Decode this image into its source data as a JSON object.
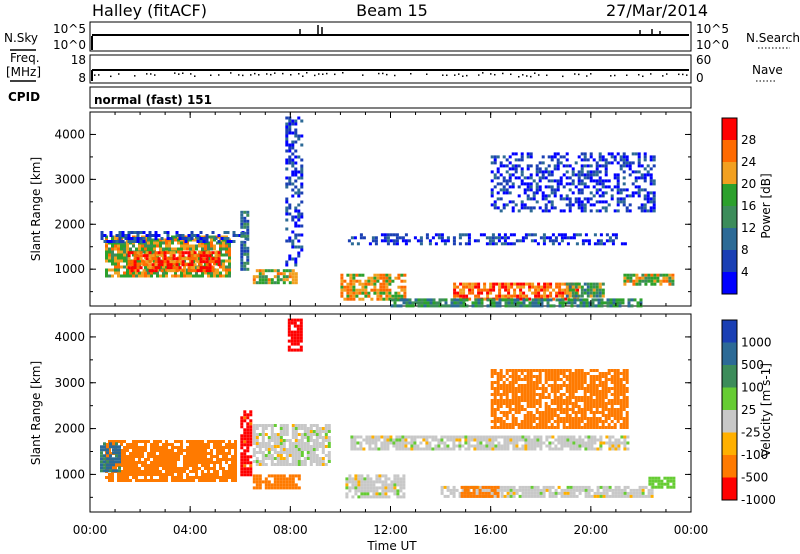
{
  "header": {
    "station": "Halley (fitACF)",
    "beam": "Beam 15",
    "date": "27/Mar/2014"
  },
  "side_labels": {
    "nsky": "N.Sky",
    "nsearch": "N.Search",
    "freq_line1": "Freq.",
    "freq_line2": "[MHz]",
    "nave": "Nave",
    "cpid": "CPID",
    "cpid_value": "normal (fast) 151"
  },
  "strip_ticks": {
    "noise_left": [
      "10^5",
      "10^0"
    ],
    "noise_right": [
      "10^5",
      "10^0"
    ],
    "freq_left": [
      "18",
      "8"
    ],
    "freq_right": [
      "60",
      "0"
    ]
  },
  "colors": {
    "power": [
      "#0000ff",
      "#1a3fb4",
      "#2c6a96",
      "#3c8c5a",
      "#2ca02c",
      "#f2a020",
      "#ff6a00",
      "#ff0000"
    ],
    "velocity": [
      "#1a3fb4",
      "#2c6a96",
      "#3c8c5a",
      "#66cc33",
      "#c8c8c8",
      "#ffb000",
      "#ff7a00",
      "#ff0000"
    ]
  },
  "chart_data": [
    {
      "type": "heatmap",
      "title": "Power",
      "ylabel": "Slant Range [km]",
      "xlabel": "Time UT",
      "x_ticks": [
        "00:00",
        "04:00",
        "08:00",
        "12:00",
        "16:00",
        "20:00",
        "00:00"
      ],
      "y_ticks": [
        "1000",
        "2000",
        "3000",
        "4000"
      ],
      "xlim": [
        0,
        24
      ],
      "ylim": [
        180,
        4500
      ],
      "colorbar": {
        "label": "Power [dB]",
        "ticks": [
          "4",
          "8",
          "12",
          "16",
          "20",
          "24",
          "28"
        ],
        "range": [
          0,
          32
        ]
      },
      "regions": [
        {
          "t0": 0.6,
          "t1": 5.6,
          "r0": 850,
          "r1": 1750,
          "value": 20
        },
        {
          "t0": 1.5,
          "t1": 5.2,
          "r0": 950,
          "r1": 1400,
          "value": 28
        },
        {
          "t0": 0.3,
          "t1": 6.2,
          "r0": 1600,
          "r1": 1850,
          "value": 6
        },
        {
          "t0": 6.0,
          "t1": 6.3,
          "r0": 1000,
          "r1": 2300,
          "value": 10
        },
        {
          "t0": 6.5,
          "t1": 8.2,
          "r0": 700,
          "r1": 1000,
          "value": 20
        },
        {
          "t0": 7.8,
          "t1": 8.5,
          "r0": 1100,
          "r1": 4400,
          "value": 5
        },
        {
          "t0": 10.0,
          "t1": 12.6,
          "r0": 350,
          "r1": 900,
          "value": 22
        },
        {
          "t0": 10.3,
          "t1": 21.5,
          "r0": 1550,
          "r1": 1800,
          "value": 5
        },
        {
          "t0": 14.5,
          "t1": 19.5,
          "r0": 350,
          "r1": 700,
          "value": 26
        },
        {
          "t0": 12.0,
          "t1": 22.0,
          "r0": 180,
          "r1": 350,
          "value": 14
        },
        {
          "t0": 19.0,
          "t1": 20.5,
          "r0": 400,
          "r1": 700,
          "value": 16
        },
        {
          "t0": 21.3,
          "t1": 23.3,
          "r0": 650,
          "r1": 900,
          "value": 20
        },
        {
          "t0": 16.0,
          "t1": 22.5,
          "r0": 2300,
          "r1": 3600,
          "value": 5
        }
      ]
    },
    {
      "type": "heatmap",
      "title": "Velocity",
      "ylabel": "Slant Range [km]",
      "xlabel": "Time UT",
      "x_ticks": [
        "00:00",
        "04:00",
        "08:00",
        "12:00",
        "16:00",
        "20:00",
        "00:00"
      ],
      "y_ticks": [
        "1000",
        "2000",
        "3000",
        "4000"
      ],
      "xlim": [
        0,
        24
      ],
      "ylim": [
        180,
        4500
      ],
      "colorbar": {
        "label": "Velocity [m s-1]",
        "ticks": [
          "1000",
          "500",
          "100",
          "25",
          "-25",
          "-100",
          "-500",
          "-1000"
        ],
        "range": [
          -1200,
          1200
        ]
      },
      "regions": [
        {
          "t0": 0.6,
          "t1": 5.8,
          "r0": 850,
          "r1": 1750,
          "value": -300
        },
        {
          "t0": 0.4,
          "t1": 1.2,
          "r0": 1100,
          "r1": 1700,
          "value": 600
        },
        {
          "t0": 6.0,
          "t1": 6.4,
          "r0": 1000,
          "r1": 2400,
          "value": -700
        },
        {
          "t0": 6.5,
          "t1": 8.3,
          "r0": 700,
          "r1": 1000,
          "value": -300
        },
        {
          "t0": 6.5,
          "t1": 9.5,
          "r0": 1200,
          "r1": 2100,
          "value": 0
        },
        {
          "t0": 7.9,
          "t1": 8.4,
          "r0": 3700,
          "r1": 4400,
          "value": -900
        },
        {
          "t0": 10.2,
          "t1": 12.5,
          "r0": 500,
          "r1": 1000,
          "value": 0
        },
        {
          "t0": 10.4,
          "t1": 21.5,
          "r0": 1550,
          "r1": 1850,
          "value": 0
        },
        {
          "t0": 14.0,
          "t1": 22.5,
          "r0": 500,
          "r1": 750,
          "value": 0
        },
        {
          "t0": 14.8,
          "t1": 16.3,
          "r0": 500,
          "r1": 750,
          "value": -200
        },
        {
          "t0": 22.3,
          "t1": 23.3,
          "r0": 750,
          "r1": 950,
          "value": 60
        },
        {
          "t0": 16.0,
          "t1": 21.5,
          "r0": 2000,
          "r1": 3300,
          "value": -200
        }
      ]
    }
  ]
}
